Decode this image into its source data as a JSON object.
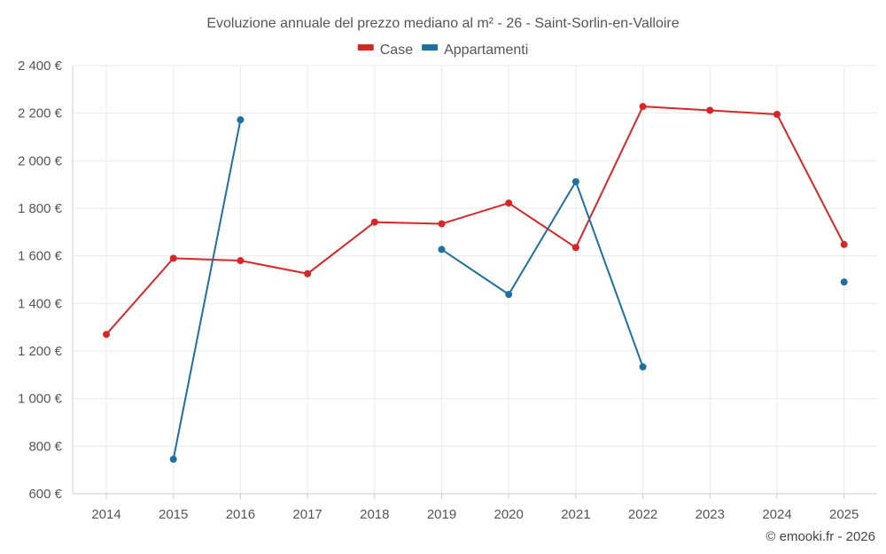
{
  "chart_data": {
    "type": "line",
    "title": "Evoluzione annuale del prezzo mediano al m² - 26 - Saint-Sorlin-en-Valloire",
    "categories": [
      "2014",
      "2015",
      "2016",
      "2017",
      "2018",
      "2019",
      "2020",
      "2021",
      "2022",
      "2023",
      "2024",
      "2025"
    ],
    "series": [
      {
        "name": "Case",
        "color": "#d62728",
        "values": [
          1270,
          1590,
          1580,
          1525,
          1742,
          1735,
          1822,
          1635,
          2228,
          2212,
          2195,
          1648
        ]
      },
      {
        "name": "Appartamenti",
        "color": "#1f6f9f",
        "values": [
          null,
          745,
          2172,
          null,
          null,
          1627,
          1438,
          1912,
          1133,
          null,
          null,
          1490
        ]
      }
    ],
    "ylim": [
      600,
      2400
    ],
    "yticks": [
      600,
      800,
      1000,
      1200,
      1400,
      1600,
      1800,
      2000,
      2200,
      2400
    ],
    "ytick_labels": [
      "600 €",
      "800 €",
      "1 000 €",
      "1 200 €",
      "1 400 €",
      "1 600 €",
      "1 800 €",
      "2 000 €",
      "2 200 €",
      "2 400 €"
    ],
    "xlabel": "",
    "ylabel": "",
    "grid": true,
    "legend_position": "top-center"
  },
  "credit": "© emooki.fr - 2026"
}
